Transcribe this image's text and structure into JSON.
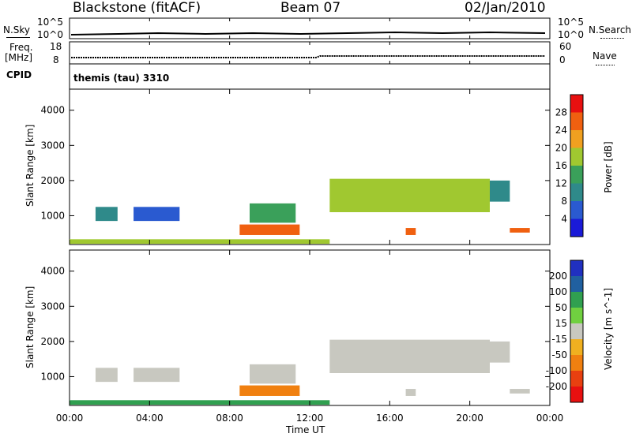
{
  "header": {
    "station": "Blackstone (fitACF)",
    "beam": "Beam 07",
    "date": "02/Jan/2010"
  },
  "top_strip": {
    "nsky_label": "N.Sky",
    "nsky_top": "10^5",
    "nsky_bottom": "10^0",
    "nsearch_label": "N.Search",
    "nsearch_top": "10^5",
    "nsearch_bottom": "10^0",
    "freq_label_1": "Freq.",
    "freq_label_2": "[MHz]",
    "freq_top": "18",
    "freq_bottom": "8",
    "nave_label": "Nave",
    "nave_top": "60",
    "nave_bottom": "0",
    "cpid_label": "CPID",
    "cpid_value": "themis (tau) 3310"
  },
  "chart_data": [
    {
      "type": "heatmap",
      "title": "",
      "xlabel": "",
      "ylabel": "Slant Range [km]",
      "x_range": [
        "00:00",
        "24:00"
      ],
      "y_ticks": [
        1000,
        2000,
        3000,
        4000
      ],
      "ylim": [
        180,
        4600
      ],
      "colorbar": {
        "label": "Power [dB]",
        "ticks": [
          4,
          8,
          12,
          16,
          20,
          24,
          28
        ],
        "colors": [
          "#1a1ad8",
          "#2a5ad0",
          "#2f8a8a",
          "#3aa05a",
          "#a0c830",
          "#f0a020",
          "#f06010",
          "#e81010"
        ]
      },
      "regions": [
        {
          "t0": 0.0,
          "t1": 13.0,
          "r0": 200,
          "r1": 330,
          "power": 18
        },
        {
          "t0": 1.3,
          "t1": 2.4,
          "r0": 850,
          "r1": 1250,
          "power": 8
        },
        {
          "t0": 3.2,
          "t1": 5.5,
          "r0": 850,
          "r1": 1250,
          "power": 7
        },
        {
          "t0": 8.5,
          "t1": 11.5,
          "r0": 450,
          "r1": 750,
          "power": 26
        },
        {
          "t0": 9.0,
          "t1": 11.3,
          "r0": 800,
          "r1": 1350,
          "power": 13
        },
        {
          "t0": 13.0,
          "t1": 21.0,
          "r0": 1100,
          "r1": 2050,
          "power": 18
        },
        {
          "t0": 16.8,
          "t1": 17.3,
          "r0": 450,
          "r1": 650,
          "power": 27
        },
        {
          "t0": 21.0,
          "t1": 22.0,
          "r0": 1400,
          "r1": 2000,
          "power": 10
        },
        {
          "t0": 22.0,
          "t1": 23.0,
          "r0": 520,
          "r1": 650,
          "power": 26
        }
      ]
    },
    {
      "type": "heatmap",
      "title": "",
      "xlabel": "Time UT",
      "ylabel": "Slant Range [km]",
      "x_ticks": [
        "00:00",
        "04:00",
        "08:00",
        "12:00",
        "16:00",
        "20:00",
        "00:00"
      ],
      "y_ticks": [
        1000,
        2000,
        3000,
        4000
      ],
      "ylim": [
        180,
        4600
      ],
      "colorbar": {
        "label": "Velocity [m s^-1]",
        "ticks": [
          200,
          100,
          50,
          15,
          -15,
          -50,
          -100,
          -200
        ],
        "colors": [
          "#2030c0",
          "#2060a0",
          "#30a050",
          "#70d040",
          "#c8c8c0",
          "#f0b020",
          "#f08010",
          "#e84010",
          "#e81010"
        ]
      },
      "regions": [
        {
          "t0": 0.0,
          "t1": 13.0,
          "r0": 200,
          "r1": 330,
          "velocity": 40
        },
        {
          "t0": 1.3,
          "t1": 2.4,
          "r0": 850,
          "r1": 1250,
          "velocity": 0
        },
        {
          "t0": 3.2,
          "t1": 5.5,
          "r0": 850,
          "r1": 1250,
          "velocity": 0
        },
        {
          "t0": 8.5,
          "t1": 11.5,
          "r0": 450,
          "r1": 750,
          "velocity": -60
        },
        {
          "t0": 9.0,
          "t1": 11.3,
          "r0": 800,
          "r1": 1350,
          "velocity": 0
        },
        {
          "t0": 13.0,
          "t1": 21.0,
          "r0": 1100,
          "r1": 2050,
          "velocity": 0
        },
        {
          "t0": 16.8,
          "t1": 17.3,
          "r0": 450,
          "r1": 650,
          "velocity": 0
        },
        {
          "t0": 21.0,
          "t1": 22.0,
          "r0": 1400,
          "r1": 2000,
          "velocity": 0
        },
        {
          "t0": 22.0,
          "t1": 23.0,
          "r0": 520,
          "r1": 650,
          "velocity": 0
        }
      ]
    }
  ]
}
